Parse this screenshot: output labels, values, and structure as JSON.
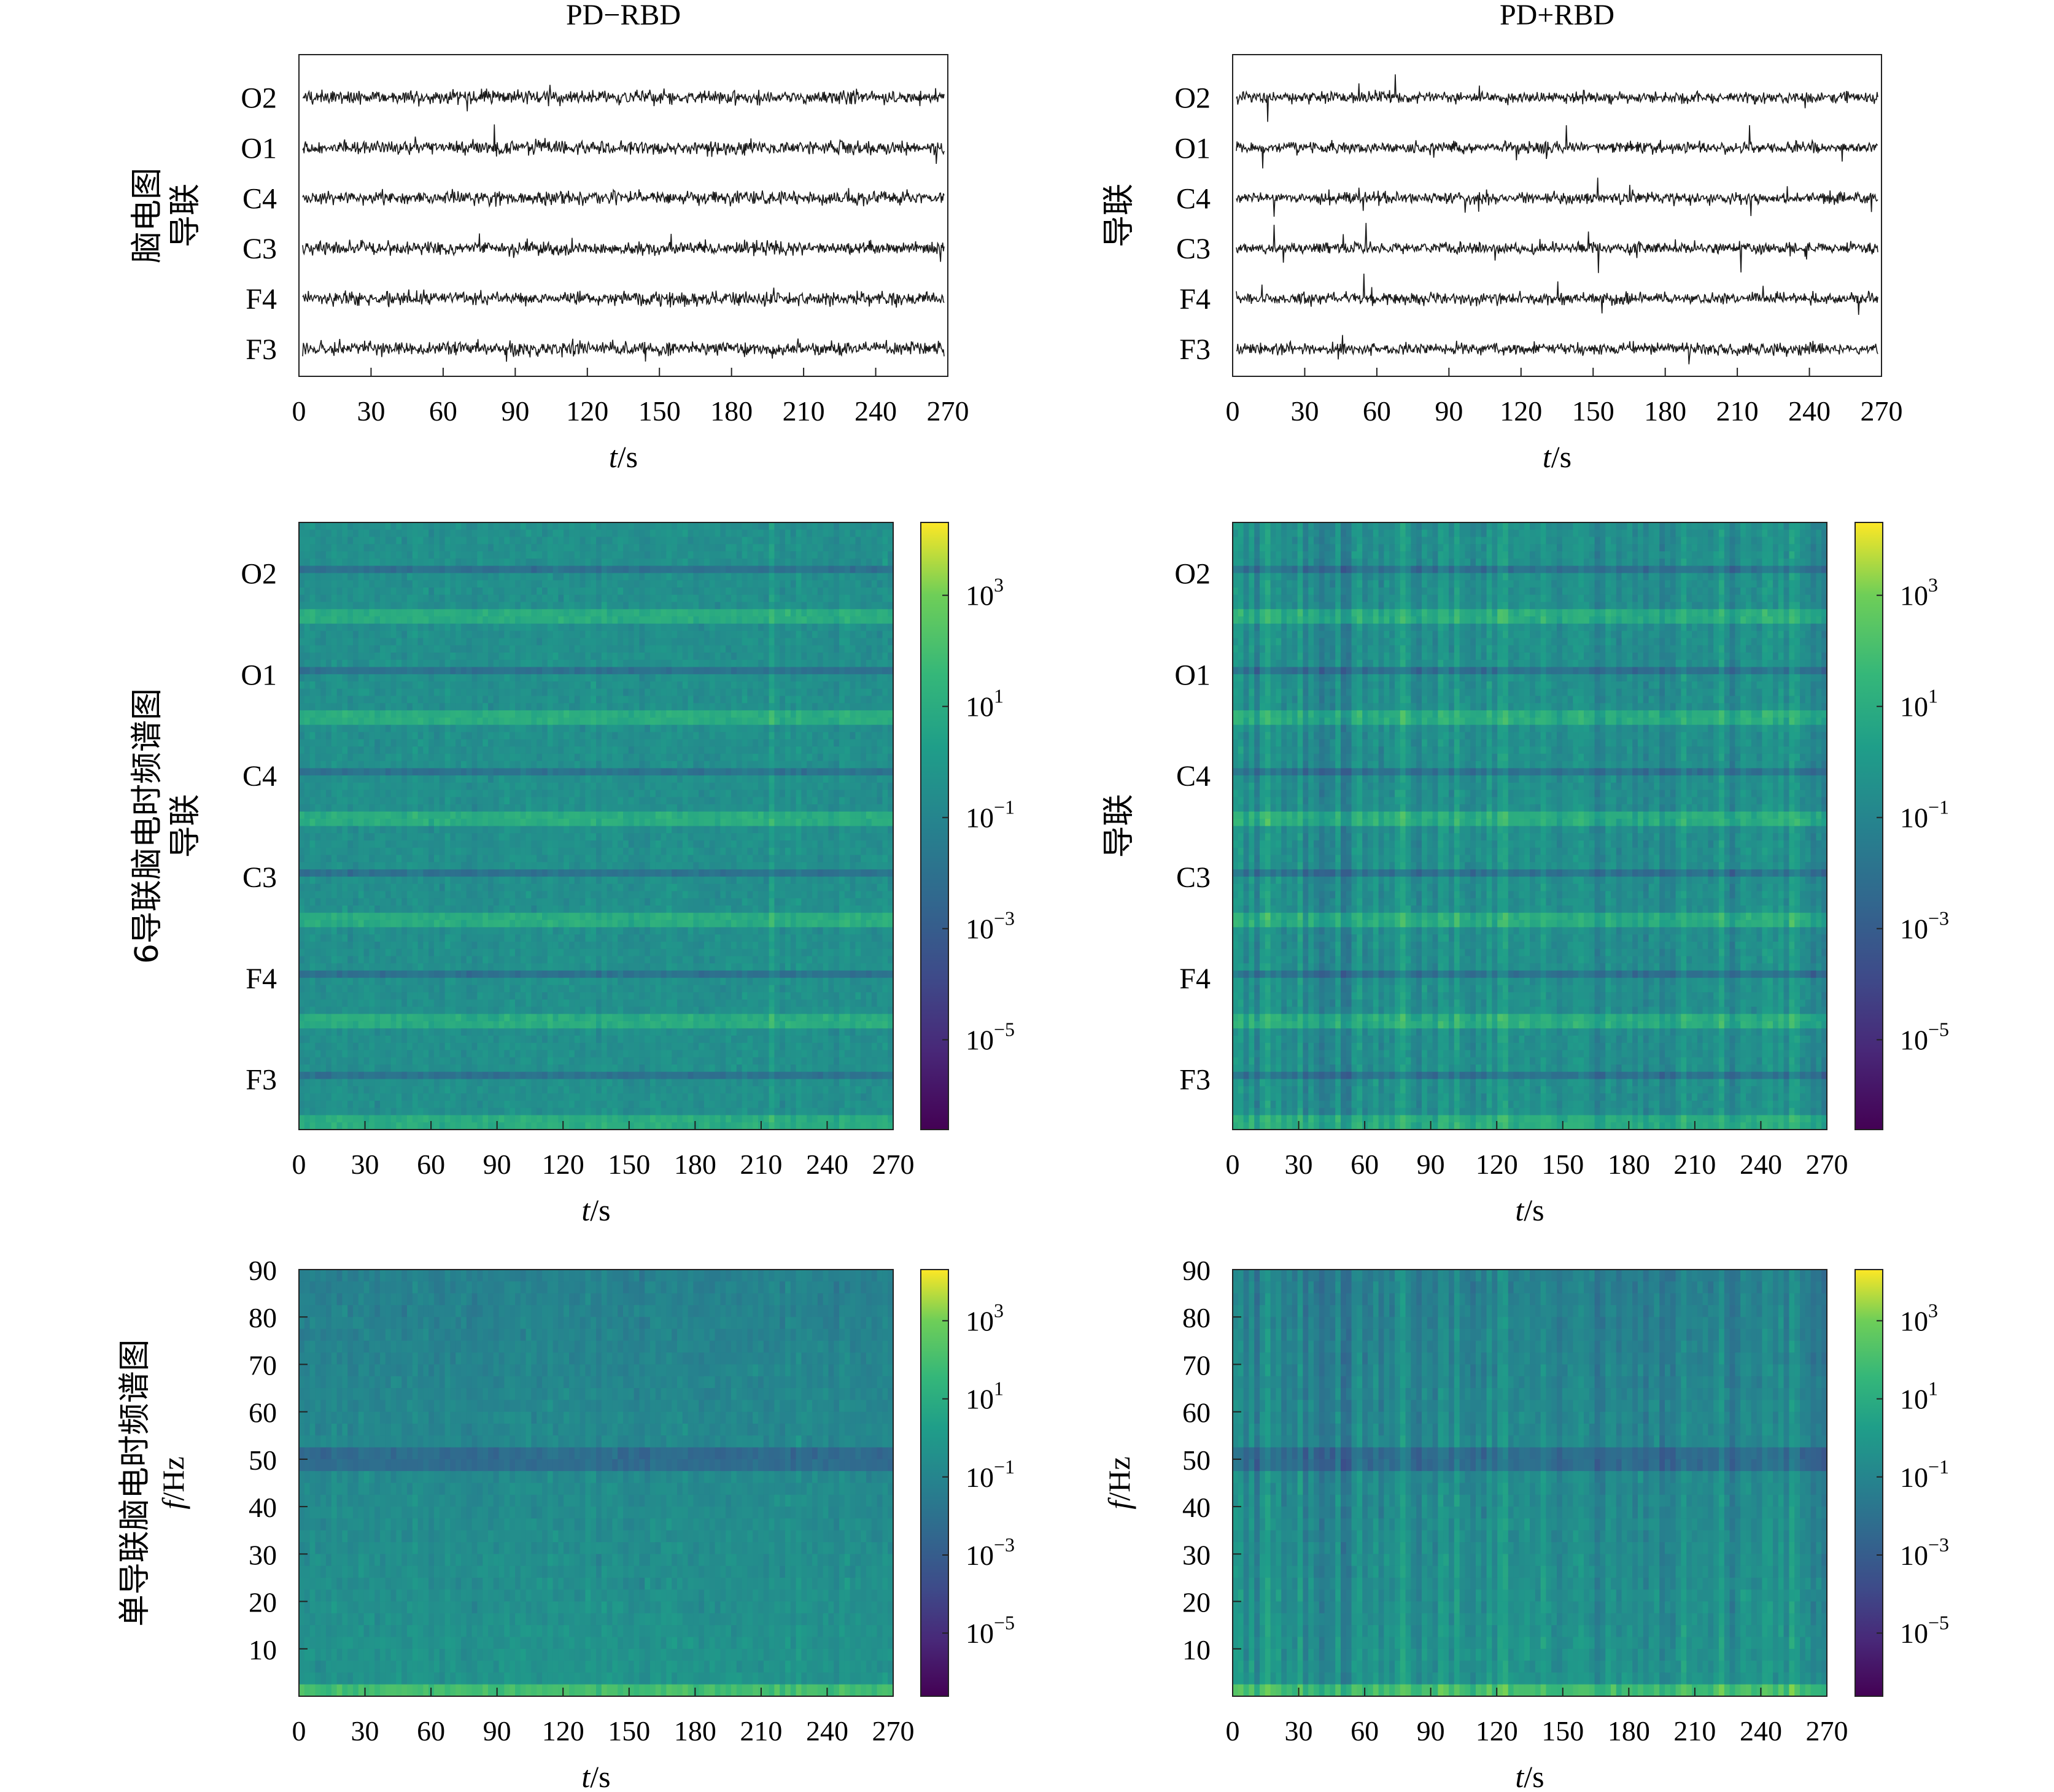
{
  "columns": [
    {
      "title": "PD−RBD",
      "row_ylabels": [
        "脑电图\n导联",
        "6导联脑电时频谱图\n导联",
        "单导联脑电时频谱图\nf/Hz"
      ]
    },
    {
      "title": "PD+RBD",
      "row_ylabels": [
        "导联",
        "导联",
        "f/Hz"
      ]
    }
  ],
  "xlabel": "t/s",
  "channels": [
    "O2",
    "O1",
    "C4",
    "C3",
    "F4",
    "F3"
  ],
  "colorbar_ticks": [
    "10^3",
    "10^1",
    "10^−1",
    "10^−3",
    "10^−5"
  ],
  "colorbar_colormap": "viridis",
  "chart_data": [
    {
      "type": "line",
      "panel": "EEG traces",
      "group": "PD−RBD",
      "xlabel": "t/s",
      "xlim": [
        0,
        270
      ],
      "x_ticks": [
        0,
        30,
        60,
        90,
        120,
        150,
        180,
        210,
        240,
        270
      ],
      "ylabel": "脑电图 导联",
      "y_categories": [
        "O2",
        "O1",
        "C4",
        "C3",
        "F4",
        "F3"
      ],
      "series_note": "raw EEG waveform per channel"
    },
    {
      "type": "line",
      "panel": "EEG traces",
      "group": "PD+RBD",
      "xlabel": "t/s",
      "xlim": [
        0,
        270
      ],
      "x_ticks": [
        0,
        30,
        60,
        90,
        120,
        150,
        180,
        210,
        240,
        270
      ],
      "ylabel": "导联",
      "y_categories": [
        "O2",
        "O1",
        "C4",
        "C3",
        "F4",
        "F3"
      ]
    },
    {
      "type": "heatmap",
      "panel": "6-lead spectrogram",
      "group": "PD−RBD",
      "xlabel": "t/s",
      "xlim": [
        0,
        270
      ],
      "x_ticks": [
        0,
        30,
        60,
        90,
        120,
        150,
        180,
        210,
        240,
        270
      ],
      "ylabel": "6导联脑电时频谱图 导联",
      "y_categories": [
        "O2",
        "O1",
        "C4",
        "C3",
        "F4",
        "F3"
      ],
      "colorbar_ticks": [
        "10^3",
        "10^1",
        "10^-1",
        "10^-3",
        "10^-5"
      ],
      "colorscale": "log"
    },
    {
      "type": "heatmap",
      "panel": "6-lead spectrogram",
      "group": "PD+RBD",
      "xlabel": "t/s",
      "xlim": [
        0,
        270
      ],
      "x_ticks": [
        0,
        30,
        60,
        90,
        120,
        150,
        180,
        210,
        240,
        270
      ],
      "ylabel": "导联",
      "y_categories": [
        "O2",
        "O1",
        "C4",
        "C3",
        "F4",
        "F3"
      ],
      "colorbar_ticks": [
        "10^3",
        "10^1",
        "10^-1",
        "10^-3",
        "10^-5"
      ],
      "colorscale": "log"
    },
    {
      "type": "heatmap",
      "panel": "single-lead spectrogram",
      "group": "PD−RBD",
      "xlabel": "t/s",
      "xlim": [
        0,
        270
      ],
      "x_ticks": [
        0,
        30,
        60,
        90,
        120,
        150,
        180,
        210,
        240,
        270
      ],
      "ylabel": "f/Hz",
      "ylim": [
        0,
        90
      ],
      "y_ticks": [
        10,
        20,
        30,
        40,
        50,
        60,
        70,
        80,
        90
      ],
      "colorbar_ticks": [
        "10^3",
        "10^1",
        "10^-1",
        "10^-3",
        "10^-5"
      ],
      "colorscale": "log"
    },
    {
      "type": "heatmap",
      "panel": "single-lead spectrogram",
      "group": "PD+RBD",
      "xlabel": "t/s",
      "xlim": [
        0,
        270
      ],
      "x_ticks": [
        0,
        30,
        60,
        90,
        120,
        150,
        180,
        210,
        240,
        270
      ],
      "ylabel": "f/Hz",
      "ylim": [
        0,
        90
      ],
      "y_ticks": [
        10,
        20,
        30,
        40,
        50,
        60,
        70,
        80,
        90
      ],
      "colorbar_ticks": [
        "10^3",
        "10^1",
        "10^-1",
        "10^-3",
        "10^-5"
      ],
      "colorscale": "log"
    }
  ]
}
